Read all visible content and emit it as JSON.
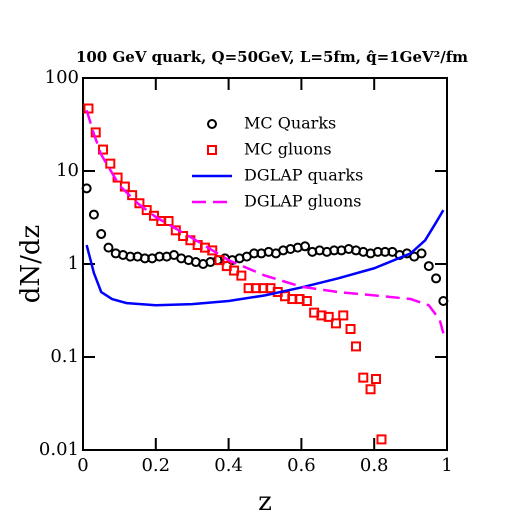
{
  "chart_data": {
    "type": "line",
    "title": "100 GeV quark, Q=50GeV, L=5fm, q̂=1GeV²/fm",
    "x_label": "z",
    "y_label": "dN/dz",
    "xlim": [
      0,
      1
    ],
    "xticks": [
      0,
      0.2,
      0.4,
      0.6,
      0.8,
      1
    ],
    "ylim": [
      0.01,
      100
    ],
    "yticks": [
      0.01,
      0.1,
      1,
      10,
      100
    ],
    "y_scale": "log",
    "legend": "upper right",
    "series": [
      {
        "name": "MC Quarks",
        "color": "#000000",
        "marker": "circle",
        "x": [
          0.01,
          0.03,
          0.05,
          0.07,
          0.09,
          0.11,
          0.13,
          0.15,
          0.17,
          0.19,
          0.21,
          0.23,
          0.25,
          0.27,
          0.29,
          0.31,
          0.33,
          0.35,
          0.37,
          0.39,
          0.41,
          0.43,
          0.45,
          0.47,
          0.49,
          0.51,
          0.53,
          0.55,
          0.57,
          0.59,
          0.61,
          0.63,
          0.65,
          0.67,
          0.69,
          0.71,
          0.73,
          0.75,
          0.77,
          0.79,
          0.81,
          0.83,
          0.85,
          0.87,
          0.89,
          0.91,
          0.93,
          0.95,
          0.97,
          0.99
        ],
        "values": [
          6.5,
          3.4,
          2.1,
          1.5,
          1.3,
          1.25,
          1.2,
          1.2,
          1.15,
          1.15,
          1.2,
          1.2,
          1.25,
          1.15,
          1.1,
          1.05,
          1.0,
          1.05,
          1.1,
          1.15,
          1.1,
          1.15,
          1.2,
          1.3,
          1.3,
          1.35,
          1.3,
          1.4,
          1.45,
          1.5,
          1.55,
          1.35,
          1.4,
          1.35,
          1.4,
          1.4,
          1.45,
          1.4,
          1.35,
          1.3,
          1.35,
          1.35,
          1.35,
          1.25,
          1.3,
          1.2,
          1.3,
          0.95,
          0.7,
          0.4
        ]
      },
      {
        "name": "MC gluons",
        "color": "#ff0000",
        "marker": "square",
        "x": [
          0.015,
          0.035,
          0.055,
          0.075,
          0.095,
          0.115,
          0.135,
          0.155,
          0.175,
          0.195,
          0.215,
          0.235,
          0.255,
          0.275,
          0.295,
          0.315,
          0.335,
          0.355,
          0.375,
          0.395,
          0.415,
          0.435,
          0.455,
          0.475,
          0.495,
          0.515,
          0.535,
          0.555,
          0.575,
          0.595,
          0.615,
          0.635,
          0.655,
          0.675,
          0.695,
          0.715,
          0.735,
          0.75,
          0.77,
          0.79,
          0.805,
          0.82
        ],
        "values": [
          47,
          26,
          17,
          12,
          8.5,
          6.8,
          5.5,
          4.5,
          3.8,
          3.3,
          2.9,
          2.9,
          2.3,
          2.0,
          1.8,
          1.6,
          1.5,
          1.4,
          1.1,
          0.95,
          0.85,
          0.75,
          0.55,
          0.55,
          0.55,
          0.55,
          0.5,
          0.45,
          0.42,
          0.42,
          0.4,
          0.3,
          0.28,
          0.27,
          0.23,
          0.28,
          0.2,
          0.13,
          0.06,
          0.045,
          0.058,
          0.013
        ]
      },
      {
        "name": "DGLAP quarks",
        "color": "#0000ff",
        "dash": false,
        "x": [
          0.01,
          0.03,
          0.05,
          0.08,
          0.12,
          0.2,
          0.3,
          0.4,
          0.5,
          0.6,
          0.7,
          0.8,
          0.9,
          0.94,
          0.97,
          0.99
        ],
        "values": [
          1.6,
          0.8,
          0.5,
          0.42,
          0.38,
          0.36,
          0.37,
          0.4,
          0.46,
          0.56,
          0.7,
          0.9,
          1.3,
          1.8,
          2.8,
          3.8
        ]
      },
      {
        "name": "DGLAP gluons",
        "color": "#ff00ff",
        "dash": true,
        "x": [
          0.01,
          0.03,
          0.05,
          0.1,
          0.15,
          0.2,
          0.3,
          0.4,
          0.5,
          0.6,
          0.7,
          0.8,
          0.9,
          0.95,
          0.98,
          0.99
        ],
        "values": [
          45,
          25,
          15,
          7,
          4.5,
          3.2,
          1.9,
          1.1,
          0.75,
          0.57,
          0.5,
          0.46,
          0.42,
          0.36,
          0.25,
          0.18
        ]
      }
    ]
  }
}
